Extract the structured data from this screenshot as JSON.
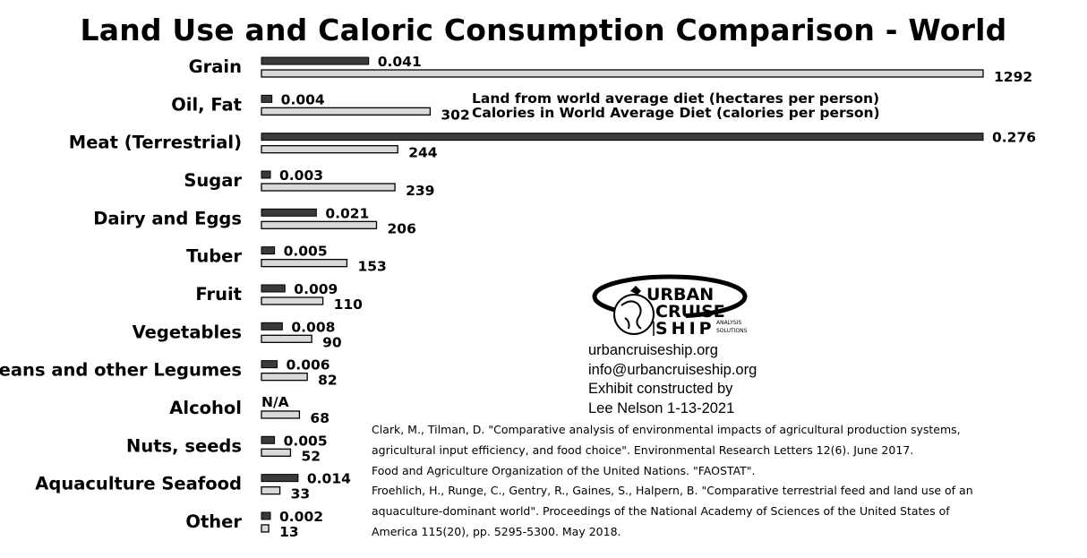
{
  "chart_data": {
    "type": "bar",
    "orientation": "horizontal",
    "title": "Land Use and Caloric Consumption Comparison - World",
    "categories": [
      "Grain",
      "Oil, Fat",
      "Meat (Terrestrial)",
      "Sugar",
      "Dairy and Eggs",
      "Tuber",
      "Fruit",
      "Vegetables",
      "Beans and other Legumes",
      "Alcohol",
      "Nuts, seeds",
      "Aquaculture Seafood",
      "Other"
    ],
    "series": [
      {
        "name": "Land from world average diet (hectares per person)",
        "color": "#3a3a3a",
        "values": [
          0.041,
          0.004,
          0.276,
          0.003,
          0.021,
          0.005,
          0.009,
          0.008,
          0.006,
          null,
          0.005,
          0.014,
          0.002
        ],
        "labels": [
          "0.041",
          "0.004",
          "0.276",
          "0.003",
          "0.021",
          "0.005",
          "0.009",
          "0.008",
          "0.006",
          "N/A",
          "0.005",
          "0.014",
          "0.002"
        ],
        "max": 0.276
      },
      {
        "name": "Calories in World Average Diet (calories per person)",
        "color": "#d9d9d9",
        "values": [
          1292,
          302,
          244,
          239,
          206,
          153,
          110,
          90,
          82,
          68,
          52,
          33,
          13
        ],
        "labels": [
          "1292",
          "302",
          "244",
          "239",
          "206",
          "153",
          "110",
          "90",
          "82",
          "68",
          "52",
          "33",
          "13"
        ],
        "max": 1292
      }
    ],
    "legend_position": "right",
    "grid": false
  },
  "branding": {
    "logo_text_1": "URBAN",
    "logo_text_2": "CRUISE",
    "logo_text_3": "SHIP",
    "logo_sub_1": "ANALYSIS",
    "logo_sub_2": "SOLUTIONS",
    "contact_lines": [
      "urbancruiseship.org",
      "info@urbancruiseship.org",
      "Exhibit constructed by",
      "Lee Nelson 1-13-2021"
    ]
  },
  "references": [
    "Clark, M., Tilman, D. \"Comparative analysis of environmental impacts of agricultural production systems,",
    "agricultural input efficiency, and food choice\". Environmental Research Letters 12(6). June 2017.",
    "Food and Agriculture Organization of the United Nations. \"FAOSTAT\".",
    "Froehlich, H., Runge, C., Gentry, R., Gaines, S., Halpern, B. \"Comparative terrestrial feed and land use of an",
    "aquaculture-dominant world\". Proceedings of the National Academy of Sciences of the United States of",
    "America 115(20), pp. 5295-5300. May 2018."
  ]
}
